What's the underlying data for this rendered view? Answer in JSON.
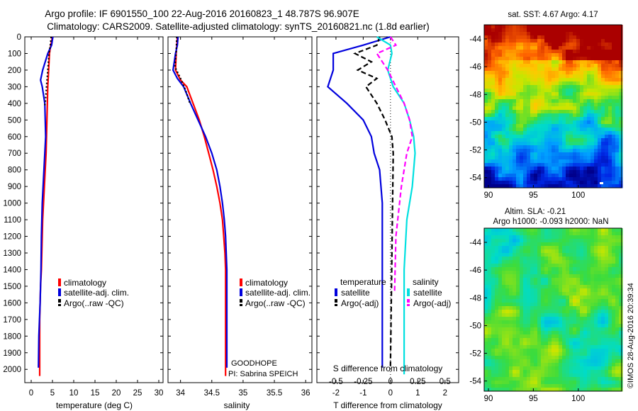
{
  "header": {
    "title_line1": "Argo profile: IF 6901550_100 22-Aug-2016 20160823_1 48.787S 96.907E",
    "title_line2": "Climatology: CARS2009. Satellite-adjusted climatology: synTS_20160821.nc (1.8d earlier)"
  },
  "colors": {
    "climatology": "#ff0000",
    "satellite": "#0000dd",
    "argo": "#000000",
    "salinity_satellite": "#00e0e0",
    "salinity_argo": "#ff00ff"
  },
  "chart_data": [
    {
      "id": "temperature",
      "type": "line",
      "xlabel": "temperature (deg C)",
      "xlim": [
        -1.5,
        31
      ],
      "xticks": [
        "0",
        "5",
        "10",
        "15",
        "20",
        "25",
        "30"
      ],
      "xtick_values": [
        0,
        5,
        10,
        15,
        20,
        25,
        30
      ],
      "ylim": [
        2080,
        0
      ],
      "yticks": [
        "0",
        "100",
        "200",
        "300",
        "400",
        "500",
        "600",
        "700",
        "800",
        "900",
        "1000",
        "1100",
        "1200",
        "1300",
        "1400",
        "1500",
        "1600",
        "1700",
        "1800",
        "1900",
        "2000"
      ],
      "legend": [
        "climatology",
        "satellite-adj. clim.",
        "Argo(..raw -QC)"
      ],
      "series": [
        {
          "name": "climatology",
          "color": "#ff0000",
          "dash": "",
          "x": [
            5.0,
            4.6,
            4.3,
            4.1,
            3.9,
            3.8,
            3.7,
            3.6,
            3.5,
            3.3,
            3.1,
            2.9,
            2.7,
            2.6,
            2.5,
            2.4,
            2.2,
            2.0,
            2.0
          ],
          "y": [
            0,
            50,
            100,
            200,
            300,
            400,
            500,
            600,
            700,
            800,
            900,
            1000,
            1100,
            1200,
            1300,
            1400,
            1500,
            1700,
            2040
          ]
        },
        {
          "name": "satellite-adj. clim.",
          "color": "#0000dd",
          "dash": "",
          "x": [
            5.1,
            4.8,
            3.9,
            2.7,
            2.2,
            2.6,
            3.2,
            3.3,
            3.4,
            3.2,
            3.0,
            2.8,
            2.6,
            2.5,
            2.4,
            2.3,
            2.1,
            1.8,
            1.7
          ],
          "y": [
            0,
            50,
            100,
            200,
            260,
            300,
            400,
            500,
            600,
            700,
            800,
            900,
            1000,
            1100,
            1200,
            1400,
            1600,
            1800,
            1990
          ]
        },
        {
          "name": "Argo(..raw -QC)",
          "color": "#000000",
          "dash": "2,3",
          "x": [
            4.7,
            4.5,
            4.2,
            3.9,
            3.6,
            3.3,
            3.1
          ],
          "y": [
            0,
            50,
            100,
            200,
            300,
            400,
            420
          ]
        }
      ]
    },
    {
      "id": "salinity",
      "type": "line",
      "xlabel": "salinity",
      "xlim": [
        33.8,
        36.1
      ],
      "xticks": [
        "34",
        "34.5",
        "35",
        "35.5",
        "36"
      ],
      "xtick_values": [
        34,
        34.5,
        35,
        35.5,
        36
      ],
      "ylim": [
        2080,
        0
      ],
      "legend": [
        "climatology",
        "satellite-adj. clim.",
        "Argo(..raw -QC)"
      ],
      "annotation": [
        "GOODHOPE",
        "PI: Sabrina SPEICH"
      ],
      "series": [
        {
          "name": "climatology",
          "color": "#ff0000",
          "dash": "",
          "x": [
            33.95,
            33.94,
            33.93,
            33.92,
            34.0,
            34.1,
            34.2,
            34.3,
            34.38,
            34.45,
            34.52,
            34.58,
            34.63,
            34.67,
            34.69,
            34.71,
            34.72,
            34.72,
            34.72
          ],
          "y": [
            0,
            50,
            100,
            200,
            260,
            300,
            400,
            500,
            600,
            700,
            800,
            900,
            1000,
            1100,
            1200,
            1300,
            1400,
            1600,
            2040
          ]
        },
        {
          "name": "satellite-adj. clim.",
          "color": "#0000dd",
          "dash": "",
          "x": [
            33.96,
            33.95,
            33.92,
            33.88,
            33.95,
            34.05,
            34.16,
            34.28,
            34.4,
            34.5,
            34.58,
            34.63,
            34.67,
            34.7,
            34.72,
            34.73,
            34.74,
            34.74,
            34.74
          ],
          "y": [
            0,
            50,
            100,
            200,
            250,
            300,
            400,
            500,
            600,
            700,
            800,
            900,
            1000,
            1100,
            1200,
            1300,
            1400,
            1600,
            1990
          ]
        },
        {
          "name": "Argo(..raw -QC)",
          "color": "#000000",
          "dash": "2,3",
          "x": [
            33.94,
            33.93,
            33.91,
            34.0,
            34.08,
            34.15
          ],
          "y": [
            0,
            100,
            180,
            250,
            320,
            400
          ]
        }
      ]
    },
    {
      "id": "difference",
      "type": "line",
      "xlabel": "T difference from climatology",
      "x2label": "S difference from climatology",
      "xlim": [
        -2.7,
        2.5
      ],
      "xticks": [
        "-2",
        "-1",
        "0",
        "1",
        "2"
      ],
      "xtick_values": [
        -2,
        -1,
        0,
        1,
        2
      ],
      "x2ticks": [
        "-0.5",
        "-0.25",
        "0",
        "0.25",
        "0.5"
      ],
      "x2tick_values": [
        -0.5,
        -0.25,
        0,
        0.25,
        0.5
      ],
      "legend_headers": [
        "temperature",
        "salinity"
      ],
      "legend": [
        "satellite",
        "Argo(-adj)",
        "satellite",
        "Argo(-adj)"
      ],
      "series": [
        {
          "name": "satellite",
          "color": "#0000dd",
          "dash": "",
          "x": [
            0,
            -1.0,
            -2.1,
            -2.1,
            -2.3,
            -1.6,
            -1.0,
            -0.7,
            -0.6,
            -0.4,
            -0.3,
            -0.3,
            -0.3,
            -0.3
          ],
          "y": [
            0,
            50,
            100,
            200,
            300,
            400,
            500,
            600,
            700,
            800,
            1000,
            1200,
            1500,
            1990
          ]
        },
        {
          "name": "Argo(-adj)",
          "color": "#000000",
          "dash": "7,4",
          "x": [
            -0.4,
            -0.5,
            -1.3,
            -0.7,
            -1.2,
            -0.5,
            -0.9,
            -0.5,
            -0.2,
            0.05,
            0.1,
            0.0
          ],
          "y": [
            0,
            50,
            100,
            150,
            200,
            250,
            300,
            400,
            500,
            600,
            700,
            1980
          ]
        },
        {
          "name": "satellite",
          "color": "#00e0e0",
          "dash": "",
          "x": [
            -0.5,
            0.0,
            0.05,
            -0.1,
            0.1,
            0.5,
            0.7,
            0.85,
            0.9,
            0.8,
            0.6,
            0.5,
            0.5
          ],
          "y": [
            0,
            50,
            100,
            200,
            300,
            400,
            500,
            600,
            700,
            900,
            1100,
            1400,
            2030
          ]
        },
        {
          "name": "Argo(-adj)",
          "color": "#ff00ff",
          "dash": "7,4",
          "x": [
            0.0,
            0.2,
            -0.5,
            -0.1,
            0.2,
            0.5,
            0.7,
            0.8,
            0.6,
            0.4,
            0.2,
            0.15
          ],
          "y": [
            0,
            50,
            100,
            200,
            300,
            400,
            500,
            600,
            700,
            900,
            1200,
            1540
          ]
        }
      ]
    },
    {
      "id": "sst_map",
      "type": "heatmap",
      "title": "sat. SST: 4.67 Argo: 4.17",
      "xticks": [
        "90",
        "95",
        "100"
      ],
      "yticks": [
        "-44",
        "-46",
        "-48",
        "-50",
        "-52",
        "-54"
      ]
    },
    {
      "id": "sla_map",
      "type": "heatmap",
      "title_lines": [
        "Altim. SLA: -0.21",
        "Argo h1000: -0.093 h2000: NaN"
      ],
      "xticks": [
        "90",
        "95",
        "100"
      ],
      "yticks": [
        "-44",
        "-46",
        "-48",
        "-50",
        "-52",
        "-54"
      ]
    }
  ],
  "footer": {
    "stamp": "©IMOS 28-Aug-2016 20:39:34"
  }
}
